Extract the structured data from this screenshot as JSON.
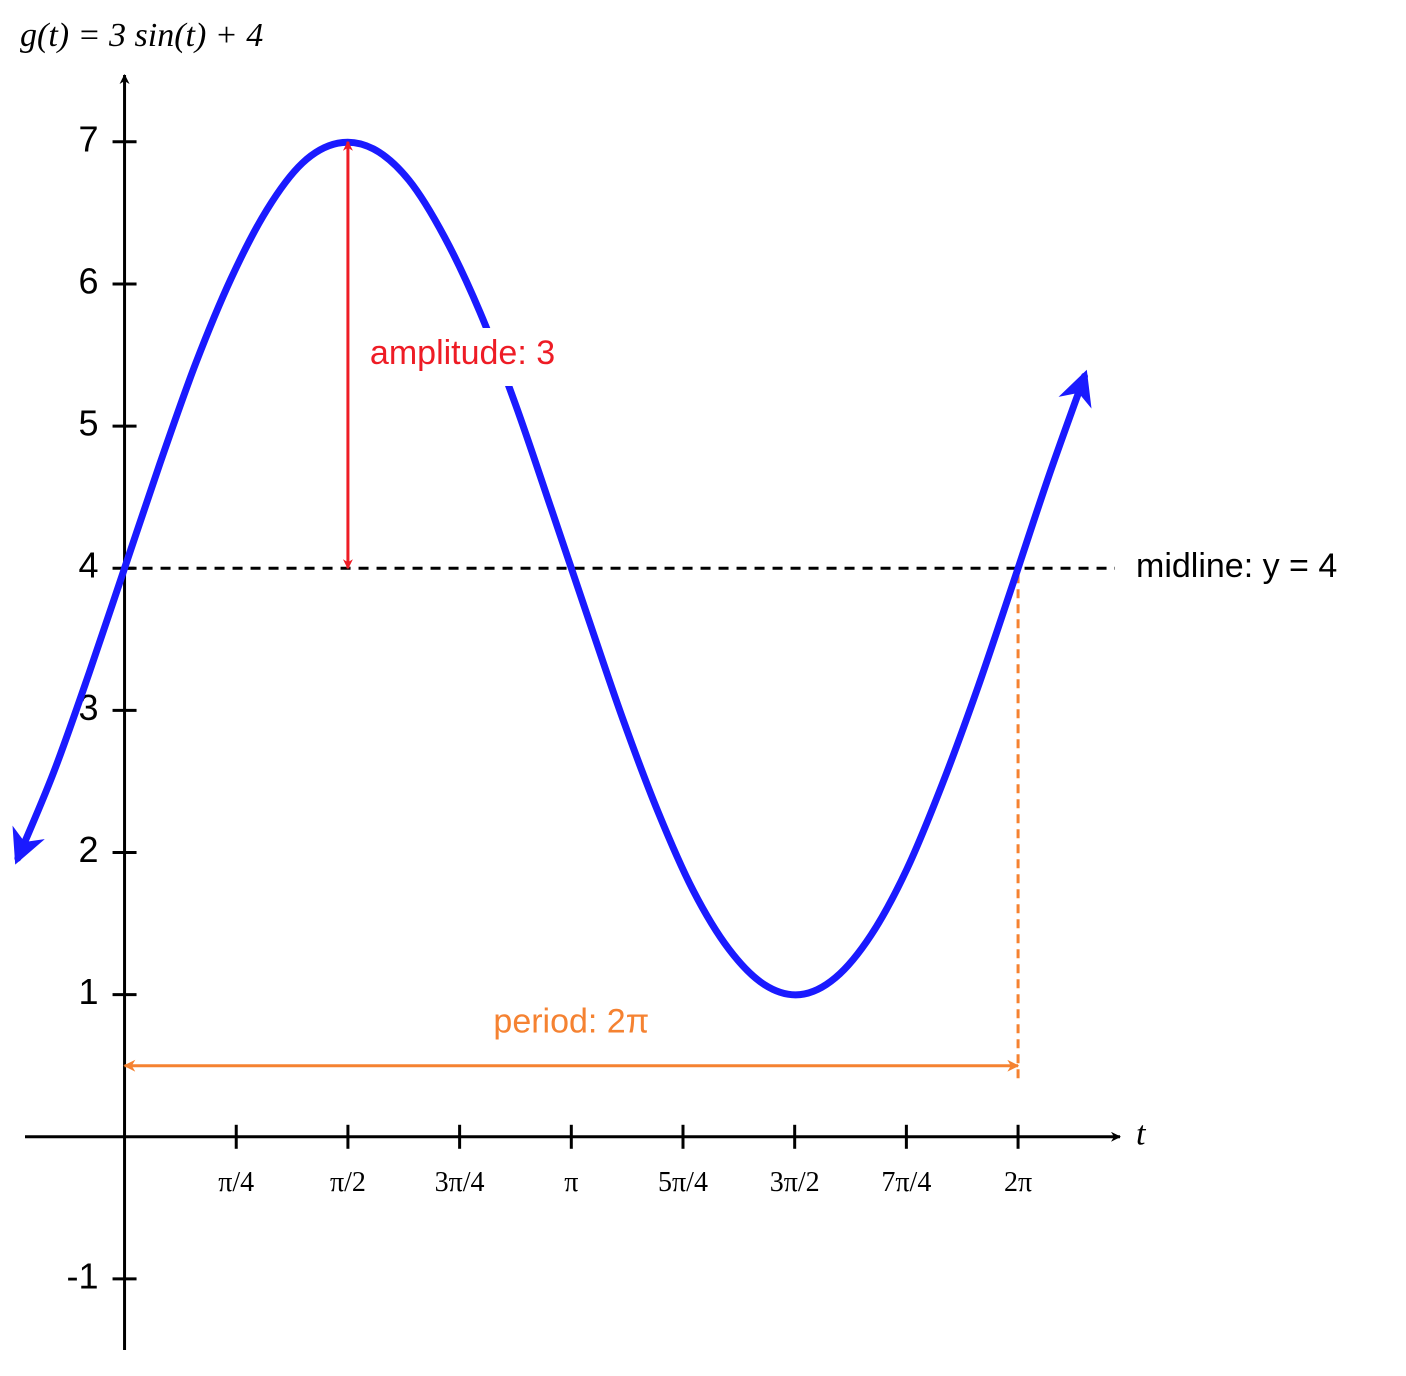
{
  "chart_data": {
    "type": "line",
    "title": "g(t) = 3 sin(t) + 4",
    "x_label": "t",
    "x": [
      -0.75,
      -0.5,
      -0.25,
      0,
      0.25,
      0.5,
      0.75,
      1.0,
      1.25,
      1.5,
      1.75,
      2.0,
      2.25,
      2.5,
      2.75,
      3.0,
      3.25,
      3.5,
      3.75,
      4.0,
      4.25,
      4.5,
      4.75,
      5.0,
      5.25,
      5.5,
      5.75,
      6.0,
      6.25,
      6.5,
      6.75
    ],
    "series": [
      {
        "color": "#1a1aff",
        "values": [
          1.96,
          2.56,
          3.26,
          4,
          4.74,
          5.44,
          6.04,
          6.52,
          6.85,
          6.99,
          6.95,
          6.73,
          6.33,
          5.8,
          5.15,
          4.42,
          3.68,
          2.95,
          2.29,
          1.73,
          1.32,
          1.07,
          1.0,
          1.12,
          1.42,
          1.88,
          2.48,
          3.16,
          3.9,
          4.65,
          5.35
        ]
      }
    ],
    "xlim": [
      -0.7,
      7.0
    ],
    "ylim": [
      -1.5,
      7.47
    ],
    "xticks": [
      {
        "value": 0.7854,
        "label": "π/4"
      },
      {
        "value": 1.5708,
        "label": "π/2"
      },
      {
        "value": 2.3562,
        "label": "3π/4"
      },
      {
        "value": 3.1416,
        "label": "π"
      },
      {
        "value": 3.927,
        "label": "5π/4"
      },
      {
        "value": 4.7124,
        "label": "3π/2"
      },
      {
        "value": 5.4978,
        "label": "7π/4"
      },
      {
        "value": 6.2832,
        "label": "2π"
      }
    ],
    "yticks": [
      -1,
      1,
      2,
      3,
      4,
      5,
      6,
      7
    ],
    "annotations": {
      "midline": {
        "label": "midline: y = 4",
        "y": 4,
        "color": "#000000"
      },
      "amplitude": {
        "label": "amplitude: 3",
        "x": 1.5708,
        "from": 4,
        "to": 7,
        "color": "#ee1c25"
      },
      "period": {
        "label": "period: 2π",
        "y": 0.5,
        "from": 0,
        "to": 6.2832,
        "color": "#f58231"
      }
    }
  }
}
